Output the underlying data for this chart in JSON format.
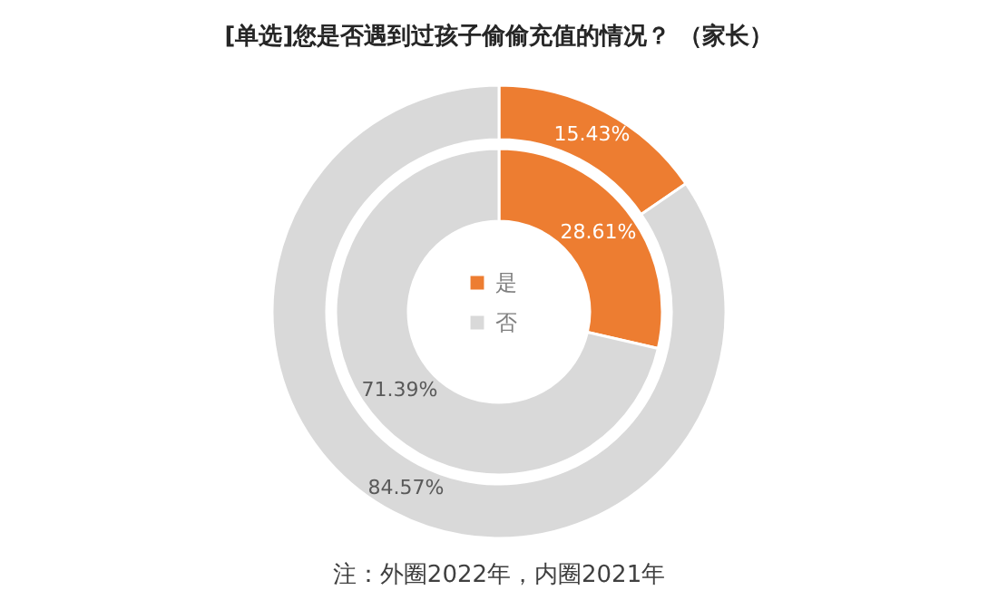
{
  "chart_data": {
    "type": "donut",
    "title": "[单选]您是否遇到过孩子偷偷充值的情况？ （家长）",
    "categories": [
      "是",
      "否"
    ],
    "colors": [
      "#ed7d31",
      "#d9d9d9"
    ],
    "series": [
      {
        "values": [
          15.43,
          84.57
        ],
        "value_labels": [
          "15.43%",
          "84.57%"
        ]
      },
      {
        "values": [
          28.61,
          71.39
        ],
        "value_labels": [
          "28.61%",
          "71.39%"
        ]
      }
    ],
    "legend": "center",
    "annotations": [
      "注：外圈2022年，内圈2021年"
    ]
  }
}
